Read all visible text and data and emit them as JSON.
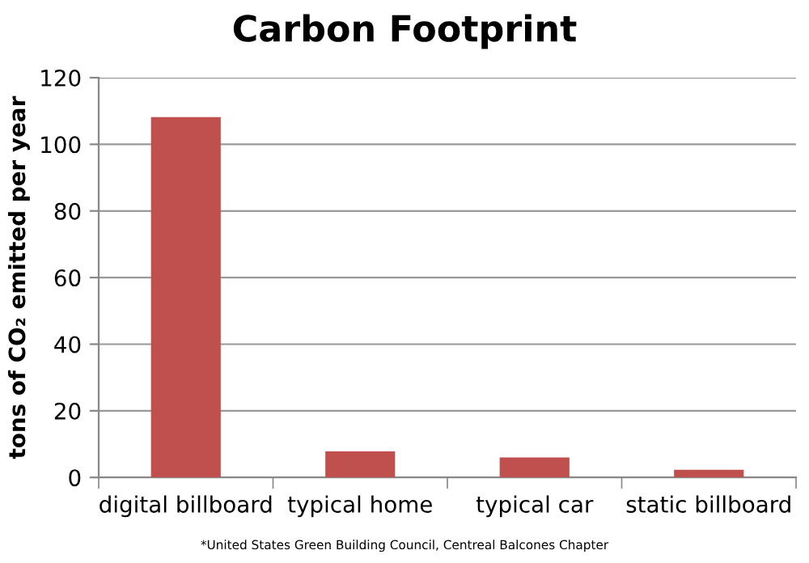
{
  "chart_data": {
    "type": "bar",
    "title": "Carbon Footprint",
    "ylabel": "tons of CO₂ emitted per year",
    "categories": [
      "digital billboard",
      "typical home",
      "typical car",
      "static billboard"
    ],
    "values": [
      108.2,
      7.8,
      6.0,
      2.3
    ],
    "color": "#c0504d",
    "ylim": [
      0,
      120
    ],
    "yticks": [
      0,
      20,
      40,
      60,
      80,
      100,
      120
    ],
    "grid": "y",
    "annotations": [
      "*United States Green Building Council, Centreal Balcones Chapter"
    ]
  }
}
